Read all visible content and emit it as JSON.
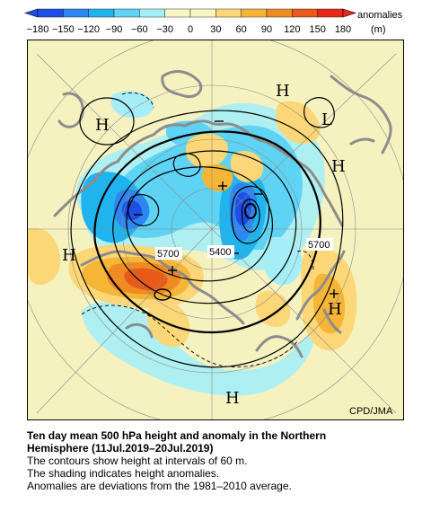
{
  "colorbar": {
    "ticks": [
      "-180",
      "-150",
      "-120",
      "-90",
      "-60",
      "-30",
      "0",
      "30",
      "60",
      "90",
      "120",
      "150",
      "180"
    ],
    "colors": [
      "#1e4ee6",
      "#2e86f0",
      "#20b4ef",
      "#5fd3f3",
      "#a6eef7",
      "#f9f5c4",
      "#f9f5c4",
      "#fbd778",
      "#f5b537",
      "#f08a22",
      "#e85a1a",
      "#e8291a"
    ],
    "unit_line1": "anomalies",
    "unit_line2": "(m)"
  },
  "map": {
    "background": "#f5f2c0",
    "high_labels": [
      "H",
      "H",
      "H",
      "H",
      "H",
      "H"
    ],
    "low_labels": [
      "L"
    ],
    "contour_labels": [
      "5700",
      "5400",
      "5700"
    ],
    "credit": "CPD/JMA"
  },
  "caption": {
    "title_line1": "Ten day mean 500 hPa height and anomaly in the Northern",
    "title_line2": "Hemisphere (11Jul.2019–20Jul.2019)",
    "lines": [
      "The contours show height at intervals of 60 m.",
      "The shading indicates height anomalies.",
      "Anomalies are deviations from the 1981–2010 average."
    ]
  }
}
